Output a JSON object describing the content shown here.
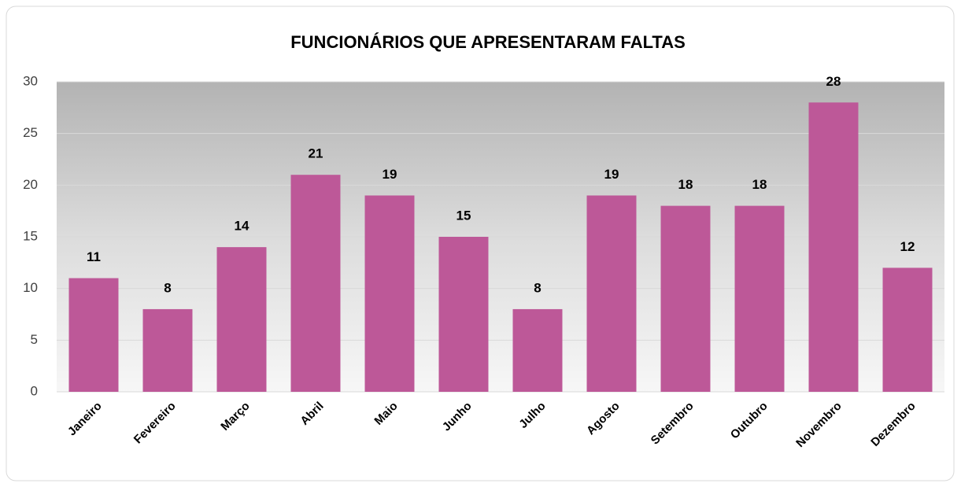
{
  "chart_data": {
    "type": "bar",
    "title": "FUNCIONÁRIOS QUE APRESENTARAM FALTAS",
    "categories": [
      "Janeiro",
      "Fevereiro",
      "Março",
      "Abril",
      "Maio",
      "Junho",
      "Julho",
      "Agosto",
      "Setembro",
      "Outubro",
      "Novembro",
      "Dezembro"
    ],
    "values": [
      11,
      8,
      14,
      21,
      19,
      15,
      8,
      19,
      18,
      18,
      28,
      12
    ],
    "color": "#bd5898",
    "ylim": [
      0,
      30
    ],
    "yticks": [
      0,
      5,
      10,
      15,
      20,
      25,
      30
    ],
    "grid": true
  }
}
